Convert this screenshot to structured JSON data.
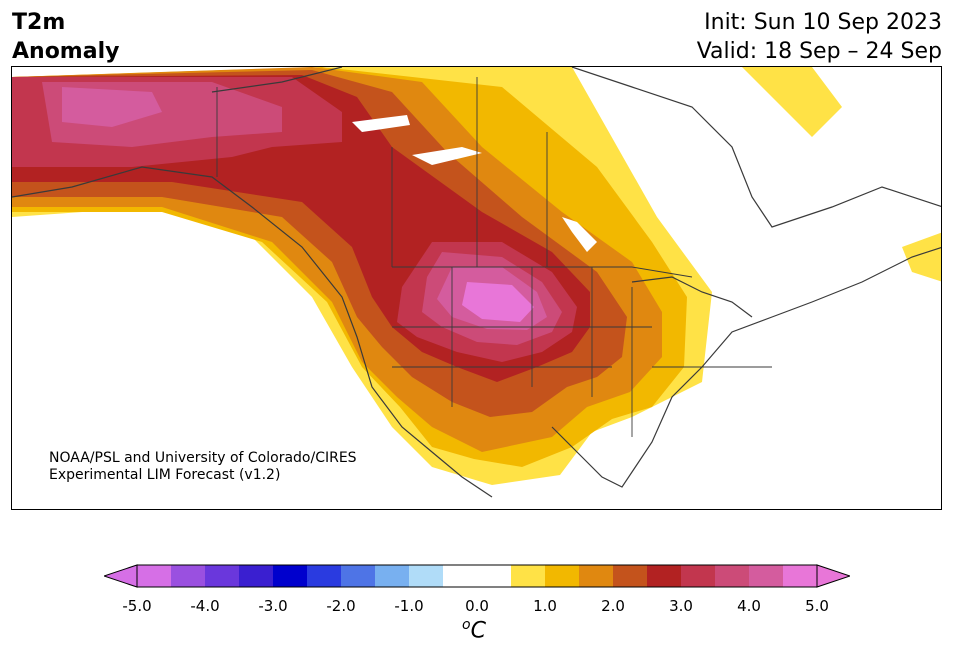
{
  "title": {
    "variable": "T2m",
    "field": "Anomaly",
    "init": "Init: Sun 10 Sep 2023",
    "valid": "Valid: 18 Sep – 24 Sep"
  },
  "credit": {
    "line1": "NOAA/PSL and University of Colorado/CIRES",
    "line2": "Experimental LIM Forecast (v1.2)"
  },
  "colorbar": {
    "unit_base": "C",
    "unit_super": "o",
    "ticks": [
      "-5.0",
      "-4.0",
      "-3.0",
      "-2.0",
      "-1.0",
      "0.0",
      "1.0",
      "2.0",
      "3.0",
      "4.0",
      "5.0"
    ],
    "bins": [
      {
        "lo": -5.0,
        "hi": -4.5,
        "color": "#d66fe6"
      },
      {
        "lo": -4.5,
        "hi": -4.0,
        "color": "#9a50e0"
      },
      {
        "lo": -4.0,
        "hi": -3.5,
        "color": "#6a37dc"
      },
      {
        "lo": -3.5,
        "hi": -3.0,
        "color": "#3a1fd0"
      },
      {
        "lo": -3.0,
        "hi": -2.5,
        "color": "#0000cd"
      },
      {
        "lo": -2.5,
        "hi": -2.0,
        "color": "#2a3be0"
      },
      {
        "lo": -2.0,
        "hi": -1.5,
        "color": "#4e74e6"
      },
      {
        "lo": -1.5,
        "hi": -1.0,
        "color": "#78b0f0"
      },
      {
        "lo": -1.0,
        "hi": -0.5,
        "color": "#b0dcf8"
      },
      {
        "lo": -0.5,
        "hi": 0.5,
        "color": "#ffffff"
      },
      {
        "lo": 0.5,
        "hi": 1.0,
        "color": "#ffe246"
      },
      {
        "lo": 1.0,
        "hi": 1.5,
        "color": "#f2b800"
      },
      {
        "lo": 1.5,
        "hi": 2.0,
        "color": "#e08810"
      },
      {
        "lo": 2.0,
        "hi": 2.5,
        "color": "#c4531c"
      },
      {
        "lo": 2.5,
        "hi": 3.0,
        "color": "#b22222"
      },
      {
        "lo": 3.0,
        "hi": 3.5,
        "color": "#c2364e"
      },
      {
        "lo": 3.5,
        "hi": 4.0,
        "color": "#cc4b78"
      },
      {
        "lo": 4.0,
        "hi": 4.5,
        "color": "#d45c9e"
      },
      {
        "lo": 4.5,
        "hi": 5.0,
        "color": "#e876d8"
      }
    ],
    "under_color": "#d66fe6",
    "over_color": "#e876d8"
  }
}
